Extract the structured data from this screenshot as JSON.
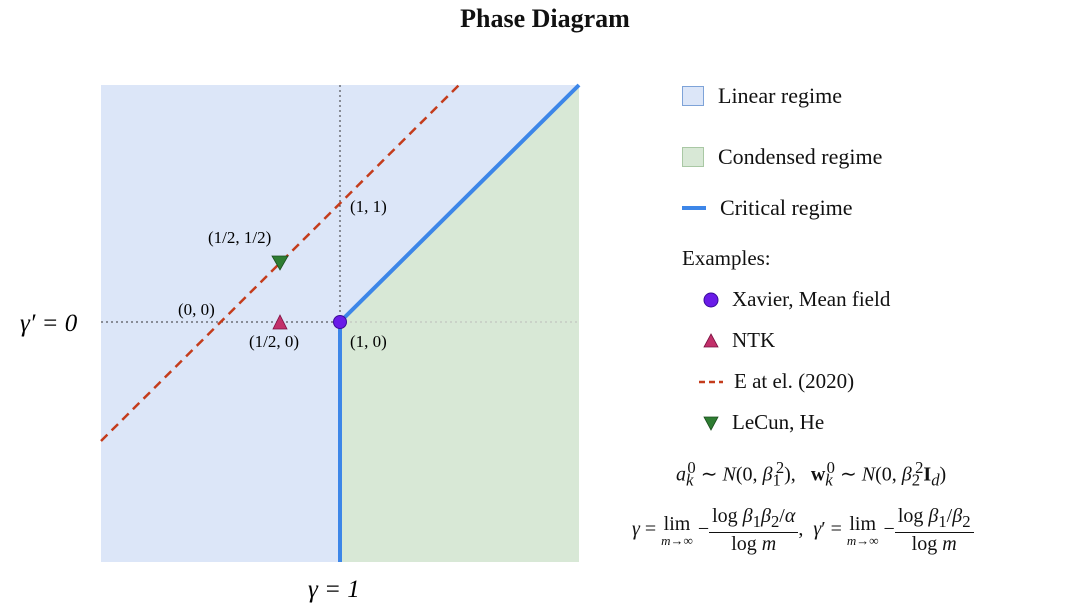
{
  "title": "Phase Diagram",
  "axes": {
    "x_label": "γ = 1",
    "y_label": "γ′ = 0"
  },
  "points": {
    "p00": "(0, 0)",
    "p11": "(1, 1)",
    "p10": "(1, 0)",
    "p_half_half": "(1/2, 1/2)",
    "p_half_zero": "(1/2, 0)"
  },
  "legend": {
    "linear": "Linear regime",
    "condensed": "Condensed regime",
    "critical": "Critical regime"
  },
  "examples": {
    "header": "Examples:",
    "items": [
      {
        "label": "Xavier, Mean field",
        "marker": "circle",
        "color": "#6a1be8"
      },
      {
        "label": "NTK",
        "marker": "triangle-up",
        "color": "#c2306a"
      },
      {
        "label": "E at el. (2020)",
        "marker": "dashed-line",
        "color": "#c43c1c"
      },
      {
        "label": "LeCun, He",
        "marker": "triangle-down",
        "color": "#2e7d32"
      }
    ]
  },
  "formulas": {
    "init": "a_k^0 ∼ N(0, β_1^2),   w_k^0 ∼ N(0, β_2^2 I_d)",
    "gamma": "γ = lim_{m→∞} −log β1β2/α / log m,  γ′ = lim_{m→∞} −log β1/β2 / log m"
  },
  "colors": {
    "linear_fill": "#dce6f8",
    "condensed_fill": "#d8e8d6",
    "critical_line": "#3d86e8",
    "dashed_line": "#c43c1c",
    "point_xavier": "#6a1be8",
    "point_ntk": "#c2306a",
    "point_lecun": "#2e7d32"
  }
}
